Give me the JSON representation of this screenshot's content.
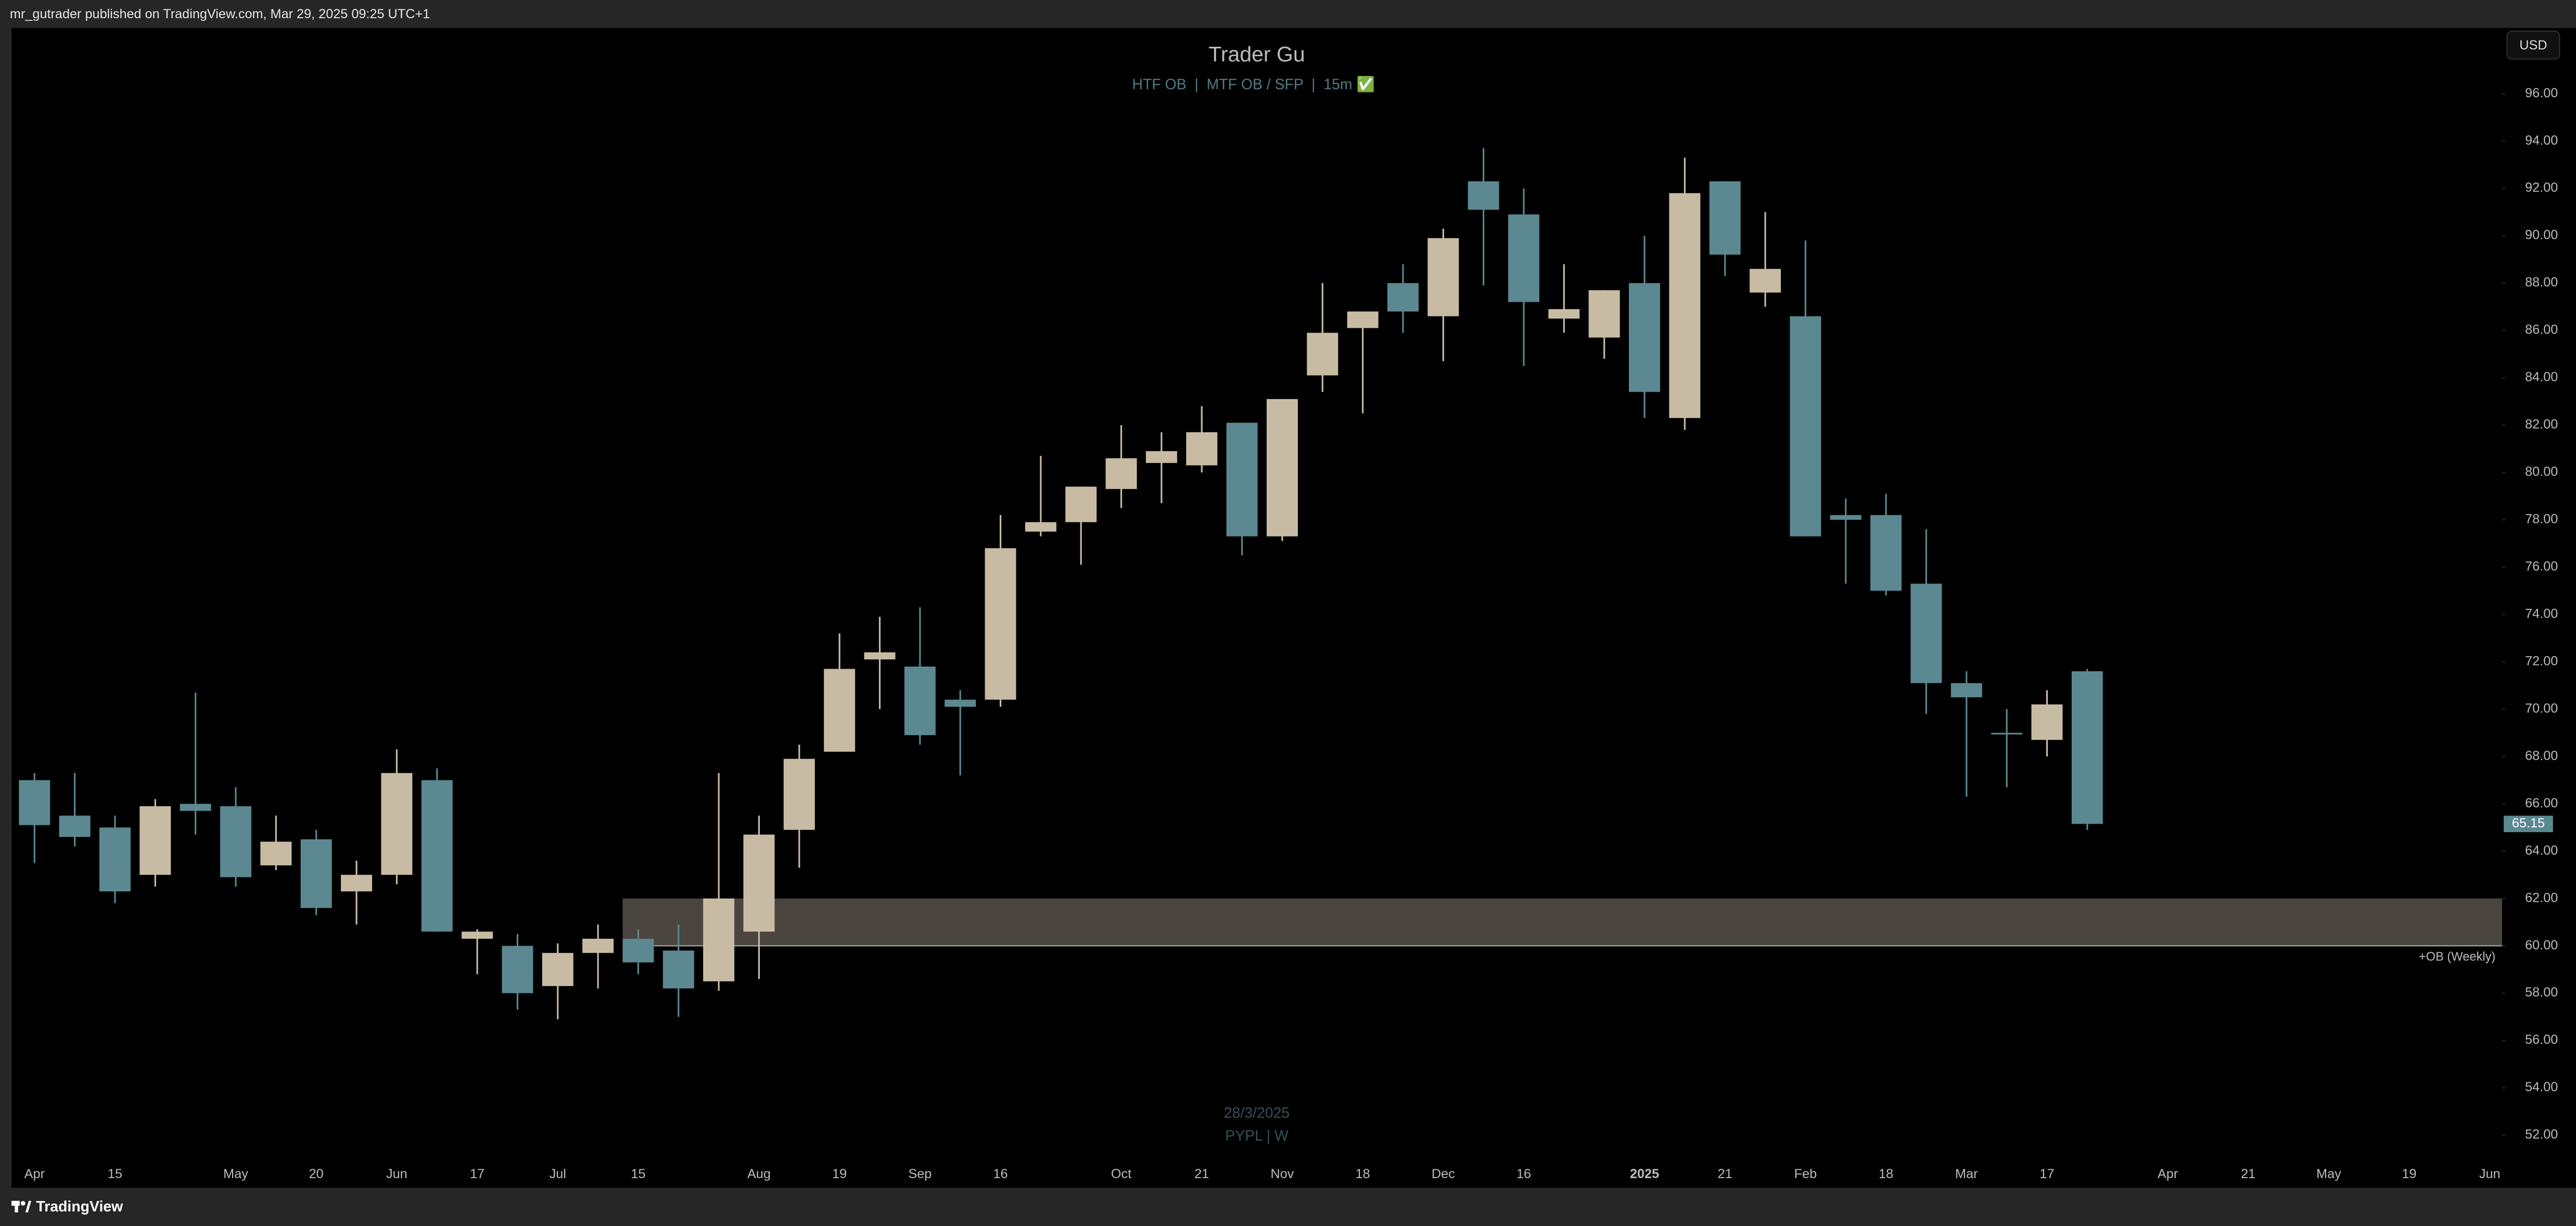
{
  "header": {
    "text": "mr_gutrader published on TradingView.com, Mar 29, 2025 09:25 UTC+1"
  },
  "footer": {
    "brand": "TradingView"
  },
  "currency": "USD",
  "chart_data": {
    "type": "candlestick",
    "title": "Trader Gu",
    "subtitle": "HTF OB  |  MTF OB / SFP  |  15m ✅",
    "watermark": [
      "28/3/2025",
      "PYPL | W"
    ],
    "up_color": "#c8bba4",
    "down_color": "#5b8891",
    "categories": [
      "Apr",
      null,
      "15",
      null,
      null,
      "May",
      null,
      "20",
      null,
      "Jun",
      null,
      "17",
      null,
      "Jul",
      null,
      "15",
      null,
      null,
      "Aug",
      null,
      "19",
      null,
      "Sep",
      null,
      "16",
      null,
      null,
      "Oct",
      null,
      "21",
      null,
      "Nov",
      null,
      "18",
      null,
      "Dec",
      null,
      "16",
      null,
      null,
      "2025",
      null,
      "21",
      null,
      "Feb",
      null,
      "18",
      null,
      "Mar",
      null,
      "17",
      null,
      null,
      "Apr",
      null,
      "21",
      null,
      "May",
      null,
      "19",
      null,
      "Jun"
    ],
    "open": [
      67.0,
      65.5,
      65.0,
      63.0,
      66.0,
      65.9,
      63.4,
      64.5,
      62.3,
      63.0,
      67.0,
      60.3,
      60.0,
      58.3,
      59.7,
      60.3,
      59.8,
      58.5,
      60.6,
      64.9,
      68.2,
      72.1,
      71.8,
      70.4,
      70.4,
      77.5,
      77.9,
      79.3,
      80.4,
      80.3,
      82.1,
      77.3,
      84.1,
      86.1,
      88.0,
      86.6,
      92.3,
      90.9,
      86.5,
      85.7,
      88.0,
      82.3,
      92.3,
      87.6,
      86.6,
      78.2,
      78.2,
      75.3,
      71.1,
      69.0,
      68.7,
      71.6,
      null,
      null,
      null,
      null,
      null,
      null,
      null,
      null,
      null,
      null
    ],
    "high": [
      67.3,
      67.3,
      65.5,
      66.2,
      70.7,
      66.7,
      65.5,
      64.9,
      63.6,
      68.3,
      67.5,
      60.7,
      60.5,
      60.1,
      60.9,
      60.7,
      60.9,
      67.3,
      65.5,
      68.5,
      73.2,
      73.9,
      74.3,
      70.8,
      78.2,
      80.7,
      79.4,
      82.0,
      81.7,
      82.8,
      82.1,
      83.1,
      88.0,
      86.8,
      88.8,
      90.3,
      93.7,
      92.0,
      88.8,
      87.7,
      90.0,
      93.3,
      92.3,
      91.0,
      89.8,
      78.9,
      79.1,
      77.6,
      71.6,
      70.0,
      70.8,
      71.7,
      null,
      null,
      null,
      null,
      null,
      null,
      null,
      null,
      null,
      null
    ],
    "low": [
      63.5,
      64.2,
      61.8,
      62.5,
      64.7,
      62.5,
      63.2,
      61.3,
      60.9,
      62.6,
      60.6,
      58.8,
      57.3,
      56.9,
      58.2,
      58.8,
      57.0,
      58.1,
      58.6,
      63.3,
      68.2,
      70.0,
      68.5,
      67.2,
      70.1,
      77.3,
      76.1,
      78.5,
      78.7,
      80.0,
      76.5,
      77.1,
      83.4,
      82.5,
      85.9,
      84.7,
      87.9,
      84.5,
      85.9,
      84.8,
      82.3,
      81.8,
      88.3,
      87.0,
      77.3,
      75.3,
      74.8,
      69.8,
      66.3,
      66.7,
      68.0,
      64.9,
      null,
      null,
      null,
      null,
      null,
      null,
      null,
      null,
      null,
      null
    ],
    "close": [
      65.1,
      64.6,
      62.3,
      65.9,
      65.7,
      62.9,
      64.4,
      61.6,
      63.0,
      67.3,
      60.6,
      60.6,
      58.0,
      59.7,
      60.3,
      59.3,
      58.2,
      62.0,
      64.7,
      67.9,
      71.7,
      72.4,
      68.9,
      70.1,
      76.8,
      77.9,
      79.4,
      80.6,
      80.9,
      81.7,
      77.3,
      83.1,
      85.9,
      86.8,
      86.8,
      89.9,
      91.1,
      87.2,
      86.9,
      87.7,
      83.4,
      91.8,
      89.2,
      88.6,
      77.3,
      78.0,
      75.0,
      71.1,
      70.5,
      69.0,
      70.2,
      65.15,
      null,
      null,
      null,
      null,
      null,
      null,
      null,
      null,
      null,
      null
    ],
    "last_price": 65.15,
    "zone": {
      "low": 60,
      "high": 62,
      "label": "+OB (Weekly)",
      "color": "#4a453e"
    },
    "ylim": [
      49.85,
      98.78
    ],
    "yticks": [
      {
        "value": 52,
        "label": "52.00"
      },
      {
        "value": 54,
        "label": "54.00"
      },
      {
        "value": 56,
        "label": "56.00"
      },
      {
        "value": 58,
        "label": "58.00"
      },
      {
        "value": 60,
        "label": "60.00"
      },
      {
        "value": 62,
        "label": "62.00"
      },
      {
        "value": 64,
        "label": "64.00"
      },
      {
        "value": 66,
        "label": "66.00"
      },
      {
        "value": 68,
        "label": "68.00"
      },
      {
        "value": 70,
        "label": "70.00"
      },
      {
        "value": 72,
        "label": "72.00"
      },
      {
        "value": 74,
        "label": "74.00"
      },
      {
        "value": 76,
        "label": "76.00"
      },
      {
        "value": 78,
        "label": "78.00"
      },
      {
        "value": 80,
        "label": "80.00"
      },
      {
        "value": 82,
        "label": "82.00"
      },
      {
        "value": 84,
        "label": "84.00"
      },
      {
        "value": 86,
        "label": "86.00"
      },
      {
        "value": 88,
        "label": "88.00"
      },
      {
        "value": 90,
        "label": "90.00"
      },
      {
        "value": 92,
        "label": "92.00"
      },
      {
        "value": 94,
        "label": "94.00"
      },
      {
        "value": 96,
        "label": "96.00"
      }
    ],
    "grid": false
  }
}
